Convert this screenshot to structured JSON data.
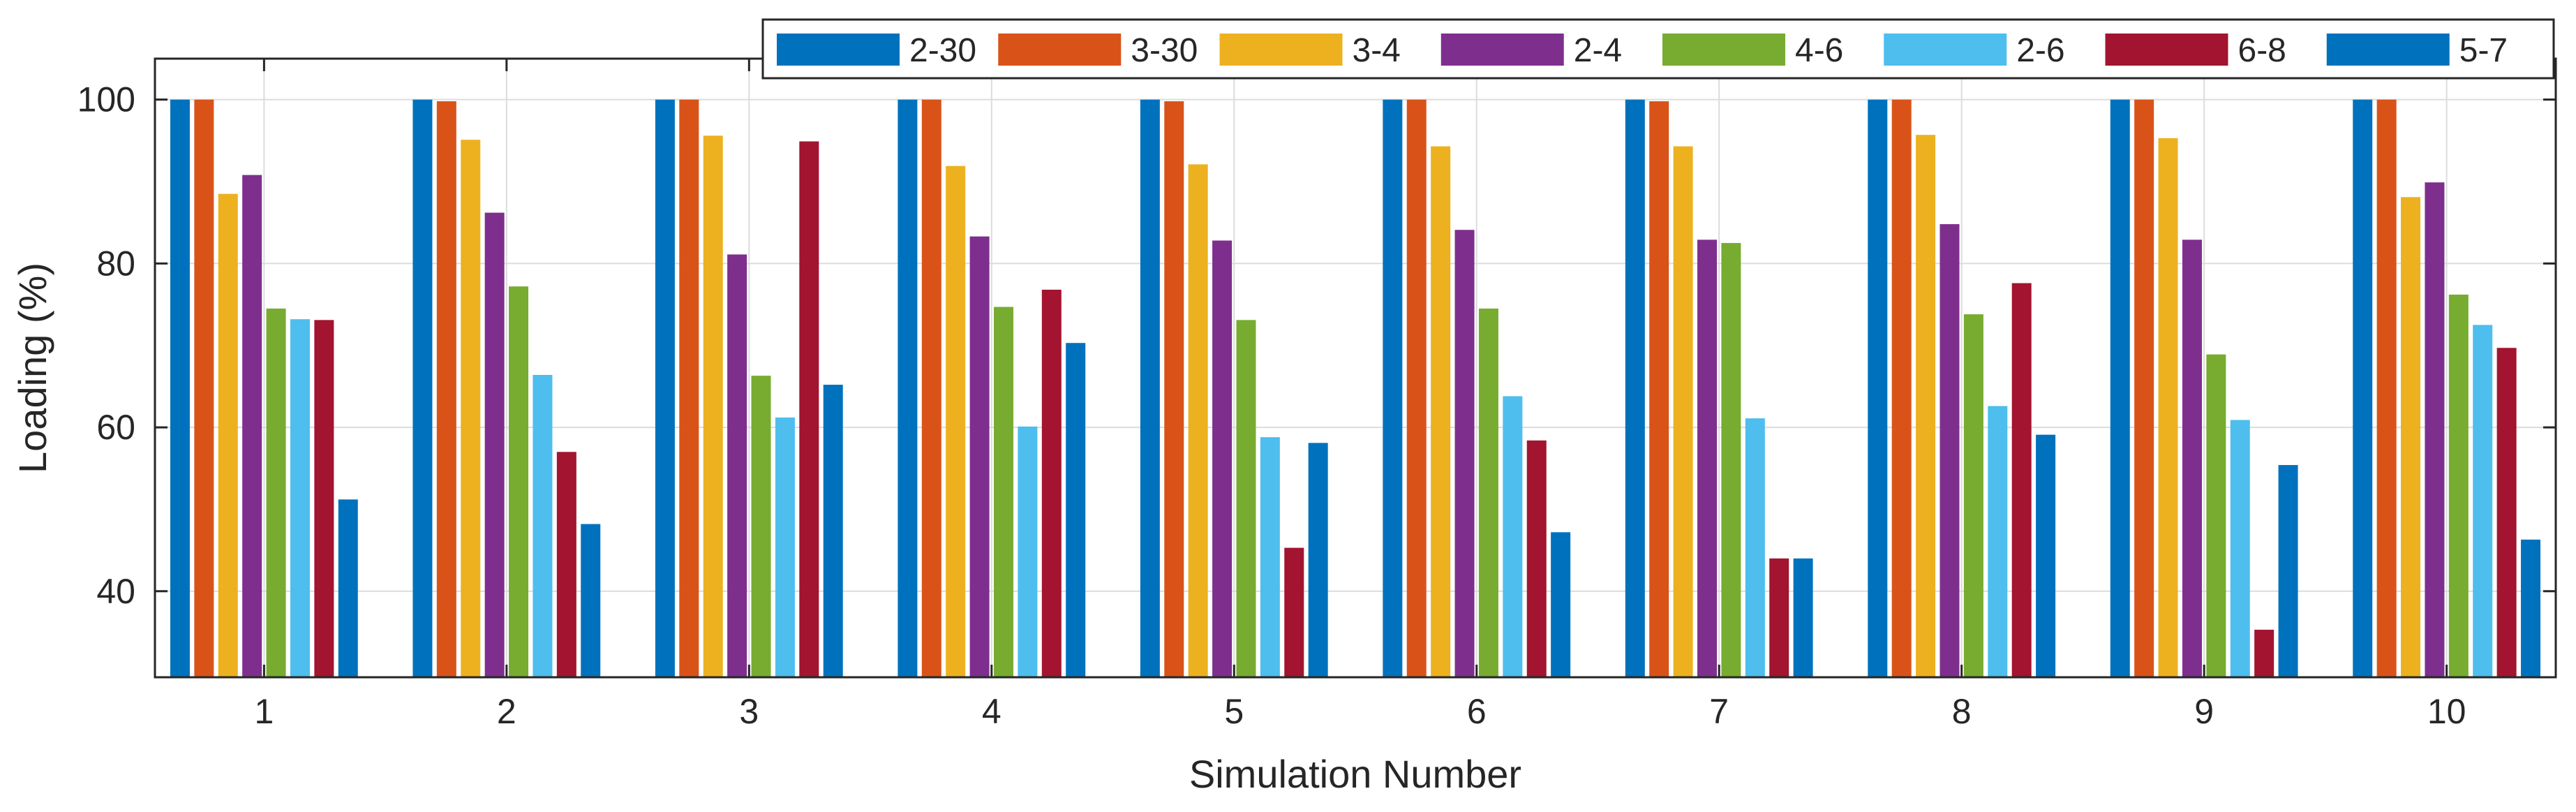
{
  "chart_data": {
    "type": "bar",
    "title": "",
    "xlabel": "Simulation Number",
    "ylabel": "Loading (%)",
    "ylim": [
      29.5,
      105
    ],
    "yticks": [
      40,
      60,
      80,
      100
    ],
    "grid": true,
    "legend_position": "top-right",
    "categories": [
      "1",
      "2",
      "3",
      "4",
      "5",
      "6",
      "7",
      "8",
      "9",
      "10"
    ],
    "series": [
      {
        "name": "2-30",
        "color": "#0072BD",
        "values": [
          100,
          100,
          100,
          100,
          100,
          100,
          100,
          100,
          100,
          100
        ]
      },
      {
        "name": "3-30",
        "color": "#D95319",
        "values": [
          100,
          99.8,
          100,
          100,
          99.8,
          100,
          99.8,
          100,
          100,
          100
        ]
      },
      {
        "name": "3-4",
        "color": "#EDB120",
        "values": [
          88.5,
          95.1,
          95.6,
          91.9,
          92.1,
          94.3,
          94.3,
          95.7,
          95.3,
          88.1
        ]
      },
      {
        "name": "2-4",
        "color": "#7E2F8E",
        "values": [
          90.8,
          86.2,
          81.1,
          83.3,
          82.8,
          84.1,
          82.9,
          84.8,
          82.9,
          89.9
        ]
      },
      {
        "name": "4-6",
        "color": "#77AC30",
        "values": [
          74.5,
          77.2,
          66.3,
          74.7,
          73.1,
          74.5,
          82.5,
          73.8,
          68.9,
          76.2
        ]
      },
      {
        "name": "2-6",
        "color": "#4DBEEE",
        "values": [
          73.2,
          66.4,
          61.2,
          60.1,
          58.8,
          63.8,
          61.1,
          62.6,
          60.9,
          72.5
        ]
      },
      {
        "name": "6-8",
        "color": "#A2142F",
        "values": [
          73.1,
          57.0,
          94.9,
          76.8,
          45.3,
          58.4,
          44.0,
          77.6,
          35.3,
          69.7
        ]
      },
      {
        "name": "5-7",
        "color": "#0072BD",
        "values": [
          51.2,
          48.2,
          65.2,
          70.3,
          58.1,
          47.2,
          44.0,
          59.1,
          55.4,
          46.3
        ]
      }
    ]
  }
}
